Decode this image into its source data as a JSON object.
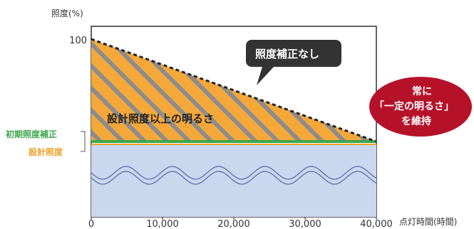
{
  "chart_data": {
    "type": "area",
    "ylabel": "照度(%)",
    "xlabel": "点灯時間(時間)",
    "y_ticks": [
      {
        "value": 100,
        "label": "100"
      }
    ],
    "x_ticks": [
      {
        "value": 0,
        "label": "0"
      },
      {
        "value": 10000,
        "label": "10,000"
      },
      {
        "value": 20000,
        "label": "20,000"
      },
      {
        "value": 30000,
        "label": "30,000"
      },
      {
        "value": 40000,
        "label": "40,000"
      }
    ],
    "xlim": [
      0,
      40000
    ],
    "ylim": [
      40,
      100
    ],
    "series": [
      {
        "name": "照度補正なし",
        "x": [
          0,
          40000
        ],
        "y": [
          100,
          71
        ],
        "style": "dashed"
      },
      {
        "name": "設計照度",
        "x": [
          0,
          40000
        ],
        "y": [
          71,
          71
        ],
        "style": "solid"
      },
      {
        "name": "初期照度補正",
        "x": [
          0,
          40000
        ],
        "y": [
          71,
          71
        ],
        "style": "solid"
      }
    ],
    "annotations": {
      "hatched_area": "設計照度以上の明るさ",
      "no_correction": "照度補正なし",
      "constant_line1": "常に",
      "constant_line2": "「一定の明るさ」",
      "constant_line3": "を維持"
    },
    "side_labels": {
      "initial": "初期照度補正",
      "design": "設計照度"
    },
    "colors": {
      "hatch_fill": "#f5a83a",
      "hatch_stripe": "#8c8c8c",
      "constant_area": "#c9d7ef",
      "wave": "#5b6fa8",
      "green_line": "#3ba84a",
      "orange_line": "#f0a12a",
      "dark_bubble": "#333333",
      "red_bubble": "#b5122a",
      "frame": "#222222"
    }
  }
}
